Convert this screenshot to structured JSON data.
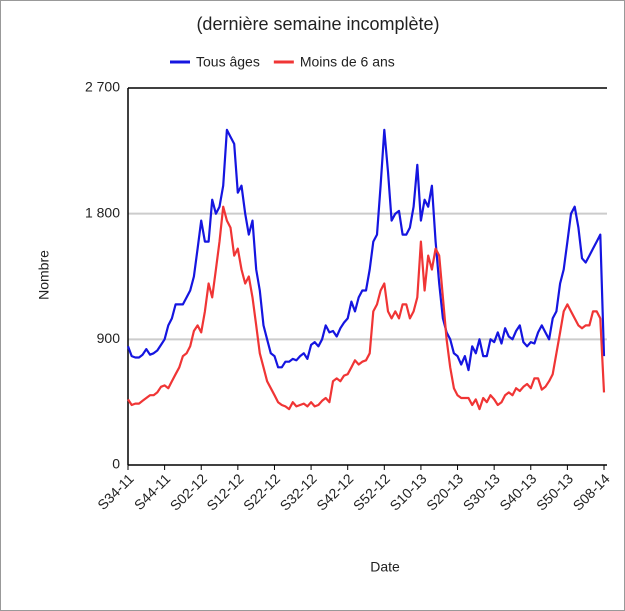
{
  "chart_data": {
    "type": "line",
    "title": "(dernière semaine incomplète)",
    "xlabel": "Date",
    "ylabel": "Nombre",
    "categories": [
      "S34-11",
      null,
      null,
      null,
      null,
      null,
      null,
      null,
      null,
      null,
      "S44-11",
      null,
      null,
      null,
      null,
      null,
      null,
      null,
      null,
      null,
      "S02-12",
      null,
      null,
      null,
      null,
      null,
      null,
      null,
      null,
      null,
      "S12-12",
      null,
      null,
      null,
      null,
      null,
      null,
      null,
      null,
      null,
      "S22-12",
      null,
      null,
      null,
      null,
      null,
      null,
      null,
      null,
      null,
      "S32-12",
      null,
      null,
      null,
      null,
      null,
      null,
      null,
      null,
      null,
      "S42-12",
      null,
      null,
      null,
      null,
      null,
      null,
      null,
      null,
      null,
      "S52-12",
      null,
      null,
      null,
      null,
      null,
      null,
      null,
      null,
      null,
      "S10-13",
      null,
      null,
      null,
      null,
      null,
      null,
      null,
      null,
      null,
      "S20-13",
      null,
      null,
      null,
      null,
      null,
      null,
      null,
      null,
      null,
      "S30-13",
      null,
      null,
      null,
      null,
      null,
      null,
      null,
      null,
      null,
      "S40-13",
      null,
      null,
      null,
      null,
      null,
      null,
      null,
      null,
      null,
      "S50-13",
      null,
      null,
      null,
      null,
      null,
      null,
      null,
      null,
      null,
      "S08-14"
    ],
    "series": [
      {
        "name": "Tous âges",
        "color": "#1515e0",
        "values": [
          850,
          780,
          770,
          770,
          790,
          830,
          790,
          800,
          820,
          860,
          900,
          1000,
          1050,
          1150,
          1150,
          1150,
          1200,
          1250,
          1350,
          1550,
          1750,
          1600,
          1600,
          1900,
          1800,
          1850,
          2000,
          2400,
          2350,
          2300,
          1950,
          2000,
          1800,
          1650,
          1750,
          1400,
          1250,
          1000,
          900,
          800,
          780,
          700,
          700,
          740,
          740,
          760,
          750,
          780,
          800,
          760,
          860,
          880,
          850,
          900,
          1000,
          950,
          960,
          920,
          980,
          1020,
          1050,
          1170,
          1100,
          1200,
          1250,
          1250,
          1400,
          1600,
          1650,
          2000,
          2400,
          2100,
          1750,
          1800,
          1820,
          1650,
          1650,
          1700,
          1850,
          2150,
          1750,
          1900,
          1850,
          2000,
          1600,
          1300,
          1050,
          950,
          900,
          800,
          780,
          720,
          780,
          680,
          850,
          800,
          900,
          780,
          780,
          900,
          880,
          950,
          870,
          980,
          920,
          900,
          960,
          1000,
          880,
          850,
          880,
          870,
          950,
          1000,
          950,
          900,
          1050,
          1100,
          1300,
          1400,
          1600,
          1800,
          1850,
          1700,
          1480,
          1450,
          1500,
          1550,
          1600,
          1650,
          780
        ]
      },
      {
        "name": "Moins de 6 ans",
        "color": "#f03535",
        "values": [
          470,
          430,
          440,
          440,
          460,
          480,
          500,
          500,
          520,
          560,
          570,
          550,
          600,
          650,
          700,
          780,
          800,
          850,
          960,
          1000,
          950,
          1100,
          1300,
          1200,
          1400,
          1600,
          1850,
          1750,
          1700,
          1500,
          1550,
          1400,
          1300,
          1350,
          1200,
          1000,
          800,
          700,
          600,
          550,
          500,
          450,
          430,
          420,
          400,
          450,
          420,
          430,
          440,
          420,
          450,
          420,
          430,
          460,
          480,
          450,
          600,
          620,
          600,
          640,
          650,
          700,
          750,
          720,
          740,
          750,
          800,
          1100,
          1150,
          1250,
          1300,
          1100,
          1050,
          1100,
          1050,
          1150,
          1150,
          1050,
          1100,
          1200,
          1600,
          1250,
          1500,
          1400,
          1550,
          1500,
          1200,
          900,
          700,
          550,
          500,
          480,
          480,
          480,
          430,
          470,
          400,
          480,
          450,
          500,
          470,
          430,
          450,
          500,
          520,
          500,
          550,
          530,
          560,
          580,
          550,
          620,
          620,
          540,
          560,
          600,
          650,
          800,
          950,
          1100,
          1150,
          1100,
          1050,
          1000,
          980,
          1000,
          1000,
          1100,
          1100,
          1050,
          520
        ]
      }
    ],
    "ylim": [
      0,
      2700
    ],
    "yticks": [
      0,
      900,
      {
        "value": 1800,
        "label": "1 800"
      },
      {
        "value": 2700,
        "label": "2 700"
      }
    ],
    "grid": true
  }
}
